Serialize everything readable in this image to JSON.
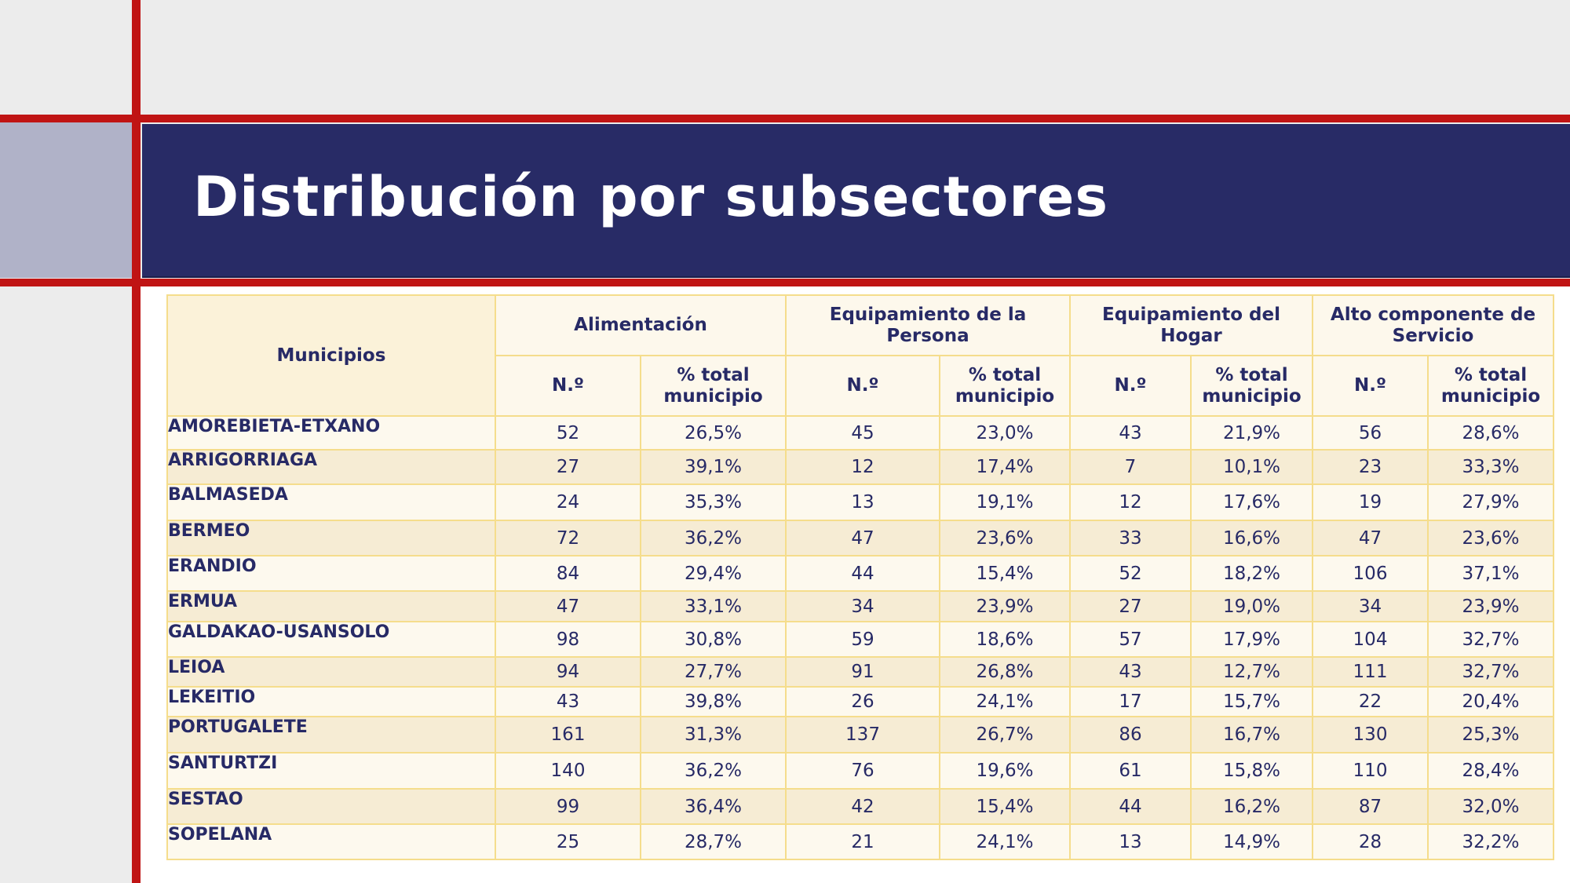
{
  "slide": {
    "title": "Distribución por subsectores"
  },
  "table": {
    "row_header": "Municipios",
    "groups": [
      {
        "label": "Alimentación"
      },
      {
        "label": "Equipamiento de la Persona"
      },
      {
        "label": "Equipamiento del Hogar"
      },
      {
        "label": "Alto componente de Servicio"
      }
    ],
    "sub_headers": {
      "count": "N.º",
      "pct": "% total municipio"
    },
    "rows": [
      {
        "municipio": "AMOREBIETA-ETXANO",
        "values": [
          "52",
          "26,5%",
          "45",
          "23,0%",
          "43",
          "21,9%",
          "56",
          "28,6%"
        ]
      },
      {
        "municipio": "ARRIGORRIAGA",
        "values": [
          "27",
          "39,1%",
          "12",
          "17,4%",
          "7",
          "10,1%",
          "23",
          "33,3%"
        ]
      },
      {
        "municipio": "BALMASEDA",
        "values": [
          "24",
          "35,3%",
          "13",
          "19,1%",
          "12",
          "17,6%",
          "19",
          "27,9%"
        ]
      },
      {
        "municipio": "BERMEO",
        "values": [
          "72",
          "36,2%",
          "47",
          "23,6%",
          "33",
          "16,6%",
          "47",
          "23,6%"
        ]
      },
      {
        "municipio": "ERANDIO",
        "values": [
          "84",
          "29,4%",
          "44",
          "15,4%",
          "52",
          "18,2%",
          "106",
          "37,1%"
        ]
      },
      {
        "municipio": "ERMUA",
        "values": [
          "47",
          "33,1%",
          "34",
          "23,9%",
          "27",
          "19,0%",
          "34",
          "23,9%"
        ]
      },
      {
        "municipio": "GALDAKAO-USANSOLO",
        "values": [
          "98",
          "30,8%",
          "59",
          "18,6%",
          "57",
          "17,9%",
          "104",
          "32,7%"
        ]
      },
      {
        "municipio": "LEIOA",
        "values": [
          "94",
          "27,7%",
          "91",
          "26,8%",
          "43",
          "12,7%",
          "111",
          "32,7%"
        ]
      },
      {
        "municipio": "LEKEITIO",
        "values": [
          "43",
          "39,8%",
          "26",
          "24,1%",
          "17",
          "15,7%",
          "22",
          "20,4%"
        ]
      },
      {
        "municipio": "PORTUGALETE",
        "values": [
          "161",
          "31,3%",
          "137",
          "26,7%",
          "86",
          "16,7%",
          "130",
          "25,3%"
        ]
      },
      {
        "municipio": "SANTURTZI",
        "values": [
          "140",
          "36,2%",
          "76",
          "19,6%",
          "61",
          "15,8%",
          "110",
          "28,4%"
        ]
      },
      {
        "municipio": "SESTAO",
        "values": [
          "99",
          "36,4%",
          "42",
          "15,4%",
          "44",
          "16,2%",
          "87",
          "32,0%"
        ]
      },
      {
        "municipio": "SOPELANA",
        "values": [
          "25",
          "28,7%",
          "21",
          "24,1%",
          "13",
          "14,9%",
          "28",
          "32,2%"
        ]
      }
    ]
  },
  "colors": {
    "title_bar": "#282b66",
    "accent_red": "#c01414",
    "text": "#272a66",
    "table_border": "#f5dd8c",
    "row_light": "#fdf9ee",
    "row_dark": "#f6ecd4"
  }
}
